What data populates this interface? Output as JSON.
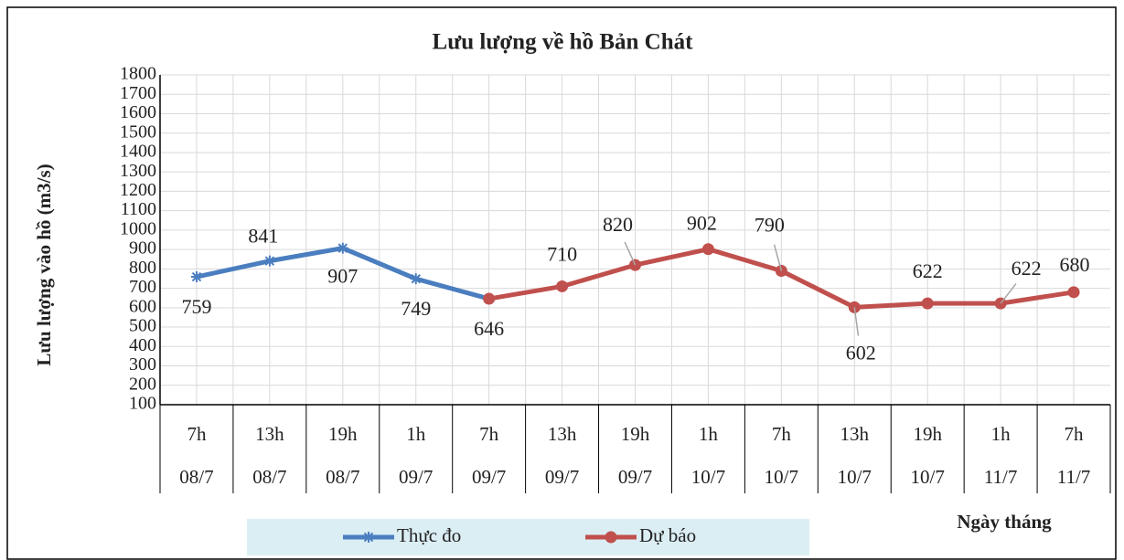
{
  "chart_data": {
    "type": "line",
    "title": "Lưu lượng về hồ Bản Chát",
    "y_label": "Lưu lượng vào hồ (m3/s)",
    "x_label": "Ngày tháng",
    "categories": [
      "7h",
      "13h",
      "19h",
      "1h",
      "7h",
      "13h",
      "19h",
      "1h",
      "7h",
      "13h",
      "19h",
      "1h",
      "7h"
    ],
    "category_dates": [
      "08/7",
      "08/7",
      "08/7",
      "09/7",
      "09/7",
      "09/7",
      "09/7",
      "10/7",
      "10/7",
      "10/7",
      "10/7",
      "11/7",
      "11/7"
    ],
    "series": [
      {
        "name": "Thực đo",
        "color": "#4a7ebf",
        "marker": "asterisk",
        "values": [
          759,
          841,
          907,
          749,
          646,
          null,
          null,
          null,
          null,
          null,
          null,
          null,
          null
        ]
      },
      {
        "name": "Dự báo",
        "color": "#c0504d",
        "marker": "circle",
        "values": [
          null,
          null,
          null,
          null,
          646,
          710,
          820,
          902,
          790,
          602,
          622,
          622,
          680
        ]
      }
    ],
    "ylim": [
      100,
      1800
    ],
    "yticks": [
      100,
      200,
      300,
      400,
      500,
      600,
      700,
      800,
      900,
      1000,
      1100,
      1200,
      1300,
      1400,
      1500,
      1600,
      1700,
      1800
    ],
    "grid": true
  }
}
